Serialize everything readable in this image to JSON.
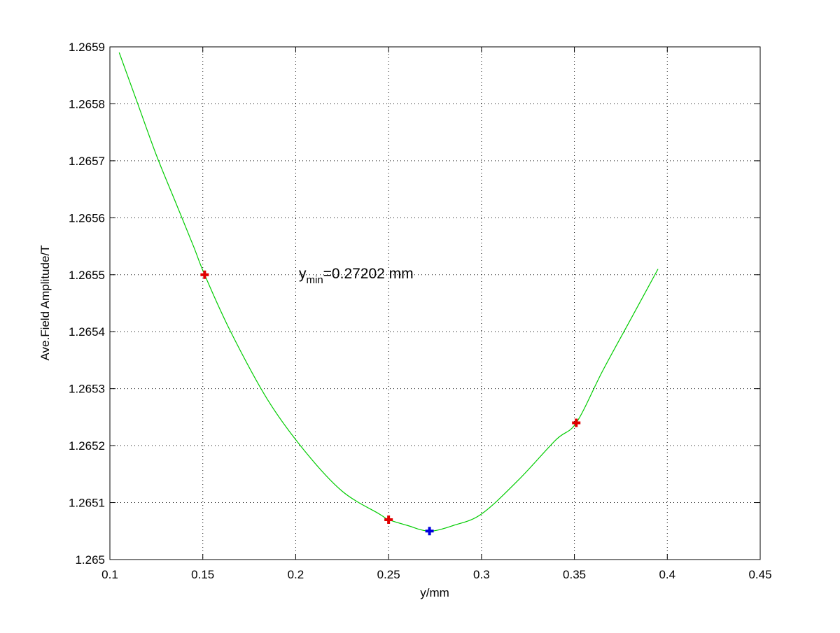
{
  "chart_data": {
    "type": "line",
    "xlabel": "y/mm",
    "ylabel": "Ave.Field Amplitude/T",
    "xlim": [
      0.1,
      0.45
    ],
    "ylim": [
      1.265,
      1.2659
    ],
    "x_ticks": [
      0.1,
      0.15,
      0.2,
      0.25,
      0.3,
      0.35,
      0.4,
      0.45
    ],
    "x_tick_labels": [
      "0.1",
      "0.15",
      "0.2",
      "0.25",
      "0.3",
      "0.35",
      "0.4",
      "0.45"
    ],
    "y_ticks": [
      1.265,
      1.2651,
      1.2652,
      1.2653,
      1.2654,
      1.2655,
      1.2656,
      1.2657,
      1.2658,
      1.2659
    ],
    "y_tick_labels": [
      "1.265",
      "1.2651",
      "1.2652",
      "1.2653",
      "1.2654",
      "1.2655",
      "1.2656",
      "1.2657",
      "1.2658",
      "1.2659"
    ],
    "grid": true,
    "series": [
      {
        "kind": "fit-curve",
        "color": "#00cc00",
        "x": [
          0.105,
          0.115,
          0.125,
          0.135,
          0.145,
          0.151,
          0.165,
          0.185,
          0.205,
          0.225,
          0.245,
          0.25,
          0.26,
          0.272,
          0.285,
          0.3,
          0.32,
          0.34,
          0.351,
          0.365,
          0.38,
          0.395
        ],
        "y": [
          1.26589,
          1.2658,
          1.26571,
          1.26563,
          1.26555,
          1.2655,
          1.2654,
          1.26528,
          1.26519,
          1.26512,
          1.26508,
          1.26507,
          1.26506,
          1.26505,
          1.26506,
          1.26508,
          1.26514,
          1.26521,
          1.26524,
          1.26533,
          1.26542,
          1.26551
        ]
      },
      {
        "kind": "data-points",
        "color": "#e00000",
        "marker": "plus",
        "x": [
          0.151,
          0.25,
          0.351
        ],
        "y": [
          1.2655,
          1.26507,
          1.26524
        ]
      },
      {
        "kind": "minimum-point",
        "color": "#0000dd",
        "marker": "plus",
        "x": [
          0.27202
        ],
        "y": [
          1.26505
        ]
      }
    ],
    "annotation": {
      "prefix": "y",
      "subscript": "min",
      "suffix": "=0.27202 mm",
      "x": 0.2,
      "y": 1.2655
    }
  }
}
